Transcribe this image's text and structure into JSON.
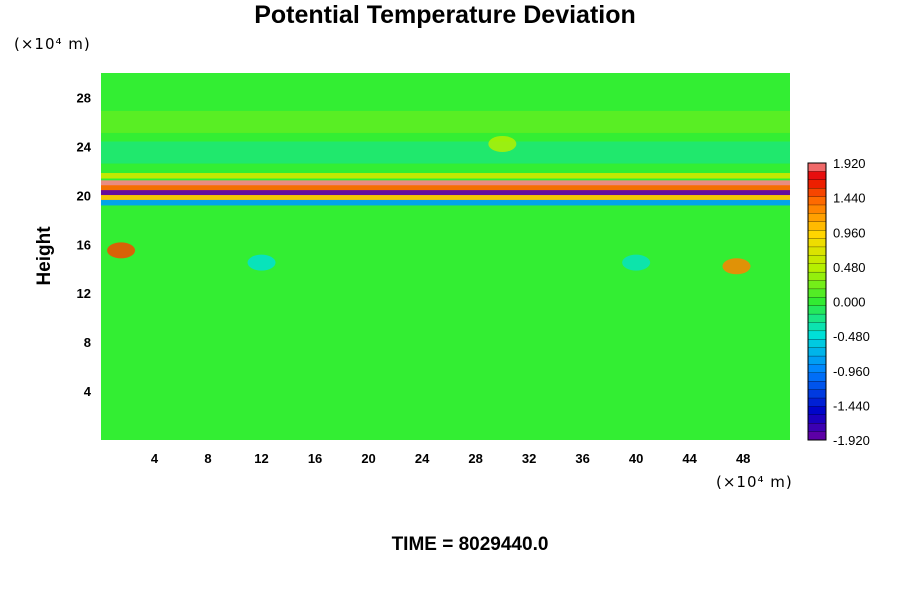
{
  "chart_data": {
    "type": "heatmap",
    "title": "Potential Temperature Deviation",
    "ylabel": "Height",
    "x_unit": "(×10⁴ m)",
    "y_unit": "(×10⁴ m)",
    "xlim": [
      0,
      51.5
    ],
    "ylim": [
      0,
      30
    ],
    "x_ticks": [
      "4",
      "8",
      "12",
      "16",
      "20",
      "24",
      "28",
      "32",
      "36",
      "40",
      "44",
      "48"
    ],
    "y_ticks": [
      "4",
      "8",
      "12",
      "16",
      "20",
      "24",
      "28"
    ],
    "x_tick_values": [
      4,
      8,
      12,
      16,
      20,
      24,
      28,
      32,
      36,
      40,
      44,
      48
    ],
    "y_tick_values": [
      4,
      8,
      12,
      16,
      20,
      24,
      28
    ],
    "colorbar_labels": [
      "1.920",
      "1.440",
      "0.960",
      "0.480",
      "0.000",
      "-0.480",
      "-0.960",
      "-1.440",
      "-1.920"
    ],
    "colorbar_values": [
      1.92,
      1.44,
      0.96,
      0.48,
      0.0,
      -0.48,
      -0.96,
      -1.44,
      -1.92
    ],
    "value_range": [
      -1.92,
      1.92
    ],
    "colorbar_levels": 33,
    "footer": "TIME = 8029440.0",
    "layers": [
      {
        "height": 21.6,
        "value": 0.6
      },
      {
        "height": 21.0,
        "value": 1.9
      },
      {
        "height": 20.6,
        "value": 1.4
      },
      {
        "height": 20.2,
        "value": -1.9
      },
      {
        "height": 19.8,
        "value": 1.0
      },
      {
        "height": 19.4,
        "value": -0.8
      },
      {
        "height": 23.5,
        "value": -0.3
      },
      {
        "height": 26.0,
        "value": 0.25
      }
    ],
    "features": [
      {
        "x": 1.5,
        "y": 15.5,
        "value": 1.5
      },
      {
        "x": 47.5,
        "y": 14.2,
        "value": 1.3
      },
      {
        "x": 30.0,
        "y": 24.2,
        "value": 0.45
      },
      {
        "x": 12.0,
        "y": 14.5,
        "value": -0.45
      },
      {
        "x": 40.0,
        "y": 14.5,
        "value": -0.4
      }
    ]
  }
}
